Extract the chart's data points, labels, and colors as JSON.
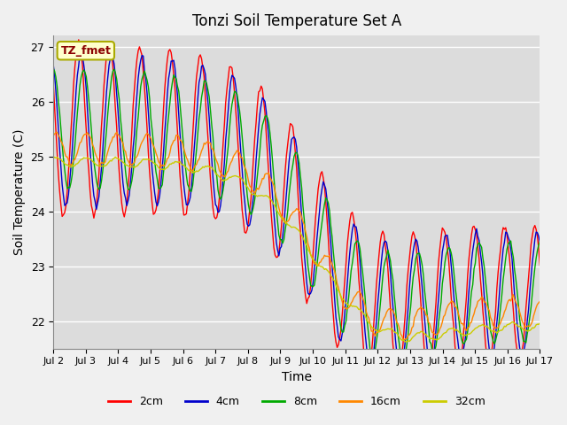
{
  "title": "Tonzi Soil Temperature Set A",
  "xlabel": "Time",
  "ylabel": "Soil Temperature (C)",
  "annotation": "TZ_fmet",
  "ylim": [
    21.5,
    27.2
  ],
  "xlim": [
    0,
    360
  ],
  "x_tick_labels": [
    "Jul 2",
    "Jul 3",
    "Jul 4",
    "Jul 5",
    "Jul 6",
    "Jul 7",
    "Jul 8",
    "Jul 9",
    "Jul 10",
    "Jul 11",
    "Jul 12",
    "Jul 13",
    "Jul 14",
    "Jul 15",
    "Jul 16",
    "Jul 17"
  ],
  "x_tick_positions": [
    0,
    24,
    48,
    72,
    96,
    120,
    144,
    168,
    192,
    216,
    240,
    264,
    288,
    312,
    336,
    360
  ],
  "background_color": "#dcdcdc",
  "plot_bg_color": "#dcdcdc",
  "line_colors": {
    "2cm": "#ff0000",
    "4cm": "#0000cc",
    "8cm": "#00aa00",
    "16cm": "#ff8800",
    "32cm": "#cccc00"
  },
  "legend_labels": [
    "2cm",
    "4cm",
    "8cm",
    "16cm",
    "32cm"
  ],
  "title_fontsize": 12,
  "label_fontsize": 10
}
